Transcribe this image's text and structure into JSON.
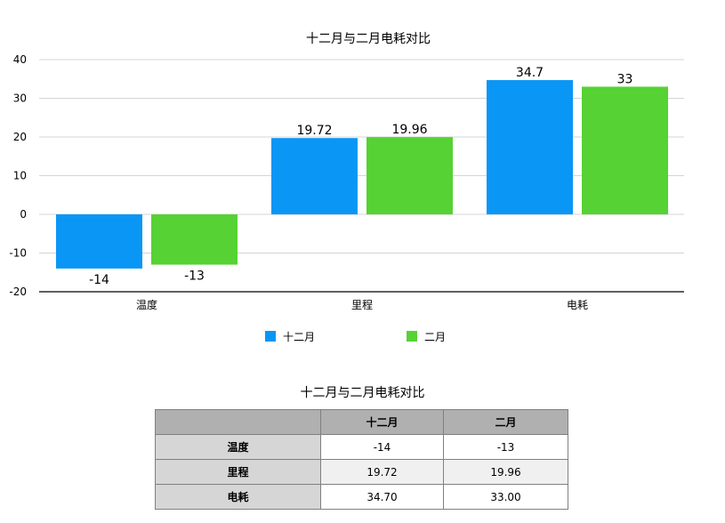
{
  "chart_data": {
    "type": "bar",
    "title": "十二月与二月电耗对比",
    "categories": [
      "温度",
      "里程",
      "电耗"
    ],
    "series": [
      {
        "name": "十二月",
        "color": "#0a96f5",
        "values": [
          -14,
          19.72,
          34.7
        ]
      },
      {
        "name": "二月",
        "color": "#56d234",
        "values": [
          -13,
          19.96,
          33
        ]
      }
    ],
    "data_labels": [
      [
        "-14",
        "19.72",
        "34.7"
      ],
      [
        "-13",
        "19.96",
        "33"
      ]
    ],
    "yticks": [
      "40",
      "30",
      "20",
      "10",
      "0",
      "-10",
      "-20"
    ],
    "ylim": [
      -20,
      40
    ],
    "grid": true,
    "legend_position": "bottom"
  },
  "table": {
    "title": "十二月与二月电耗对比",
    "headers": [
      "",
      "十二月",
      "二月"
    ],
    "rows": [
      {
        "label": "温度",
        "dec": "-14",
        "feb": "-13"
      },
      {
        "label": "里程",
        "dec": "19.72",
        "feb": "19.96"
      },
      {
        "label": "电耗",
        "dec": "34.70",
        "feb": "33.00"
      }
    ]
  }
}
